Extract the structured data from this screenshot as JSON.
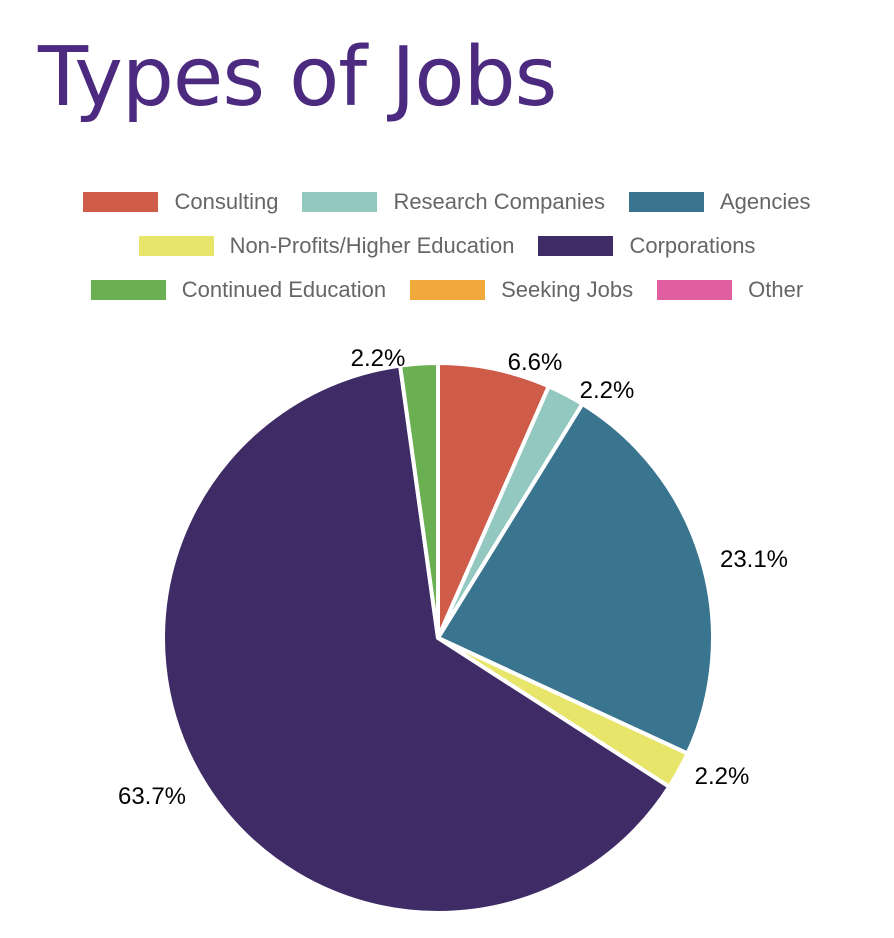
{
  "chart_data": {
    "type": "pie",
    "title": "Types of Jobs",
    "legend_position": "top",
    "slices": [
      {
        "label": "Consulting",
        "value": 6.6,
        "display": "6.6%",
        "color": "#cf5b49"
      },
      {
        "label": "Research Companies",
        "value": 2.2,
        "display": "2.2%",
        "color": "#92c8c0"
      },
      {
        "label": "Agencies",
        "value": 23.1,
        "display": "23.1%",
        "color": "#3a7590"
      },
      {
        "label": "Non-Profits/Higher Education",
        "value": 2.2,
        "display": "2.2%",
        "color": "#e8e66a"
      },
      {
        "label": "Corporations",
        "value": 63.7,
        "display": "63.7%",
        "color": "#3f2b66"
      },
      {
        "label": "Continued Education",
        "value": 2.2,
        "display": "2.2%",
        "color": "#6baf53"
      },
      {
        "label": "Seeking Jobs",
        "value": 0,
        "display": "",
        "color": "#f2a93b"
      },
      {
        "label": "Other",
        "value": 0,
        "display": "",
        "color": "#e05fa0"
      }
    ]
  }
}
